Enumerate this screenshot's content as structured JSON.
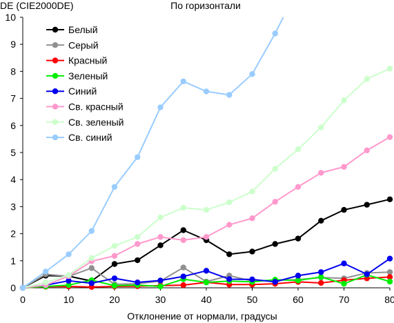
{
  "chart_data": {
    "type": "line",
    "title": "По горизонтали",
    "ylabel": "DE (CIE2000DE)",
    "xlabel": "Отклонение от нормали, градусы",
    "xlim": [
      0,
      80
    ],
    "ylim": [
      0,
      10
    ],
    "x_ticks": [
      0,
      10,
      20,
      30,
      40,
      50,
      60,
      70,
      80
    ],
    "y_ticks": [
      0,
      1,
      2,
      3,
      4,
      5,
      6,
      7,
      8,
      9,
      10
    ],
    "grid": false,
    "legend_position": "top-left",
    "x": [
      0,
      5,
      10,
      15,
      20,
      25,
      30,
      35,
      40,
      45,
      50,
      55,
      60,
      65,
      70,
      75,
      80
    ],
    "series": [
      {
        "name": "Белый",
        "color": "#000000",
        "values": [
          0,
          0.45,
          0.43,
          0.25,
          0.88,
          1.02,
          1.57,
          2.13,
          1.76,
          1.24,
          1.34,
          1.62,
          1.82,
          2.48,
          2.88,
          3.07,
          3.27
        ]
      },
      {
        "name": "Серый",
        "color": "#909090",
        "values": [
          0,
          0.5,
          0.42,
          0.73,
          0.13,
          0.15,
          0.25,
          0.75,
          0.23,
          0.45,
          0.25,
          0.28,
          0.3,
          0.38,
          0.35,
          0.55,
          0.58
        ]
      },
      {
        "name": "Красный",
        "color": "#ff0000",
        "values": [
          0,
          0.04,
          0.05,
          0.03,
          0.05,
          0.06,
          0.08,
          0.1,
          0.2,
          0.12,
          0.12,
          0.15,
          0.22,
          0.18,
          0.28,
          0.35,
          0.4
        ]
      },
      {
        "name": "Зеленый",
        "color": "#00ee00",
        "values": [
          0,
          0.05,
          0.1,
          0.28,
          0.08,
          0.1,
          0.05,
          0.32,
          0.2,
          0.25,
          0.22,
          0.3,
          0.27,
          0.4,
          0.15,
          0.48,
          0.23
        ]
      },
      {
        "name": "Синий",
        "color": "#0000ee",
        "values": [
          0,
          0.1,
          0.26,
          0.17,
          0.35,
          0.2,
          0.27,
          0.42,
          0.63,
          0.32,
          0.31,
          0.22,
          0.45,
          0.58,
          0.9,
          0.5,
          1.08
        ]
      },
      {
        "name": "Св. красный",
        "color": "#ff99cc",
        "values": [
          0,
          0.1,
          0.43,
          0.98,
          1.18,
          1.62,
          1.88,
          1.76,
          1.88,
          2.33,
          2.57,
          3.18,
          3.73,
          4.25,
          4.47,
          5.08,
          5.57
        ]
      },
      {
        "name": "Св. зеленый",
        "color": "#ccffcc",
        "values": [
          0,
          0.2,
          0.47,
          1.1,
          1.55,
          1.88,
          2.6,
          2.96,
          2.88,
          3.16,
          3.56,
          4.4,
          5.12,
          5.93,
          6.93,
          7.72,
          8.1
        ]
      },
      {
        "name": "Св. синий",
        "color": "#99ccff",
        "values": [
          0,
          0.6,
          1.24,
          2.1,
          3.73,
          4.83,
          6.67,
          7.63,
          7.26,
          7.13,
          7.9,
          9.4,
          11.1,
          null,
          null,
          null,
          null
        ]
      }
    ]
  }
}
